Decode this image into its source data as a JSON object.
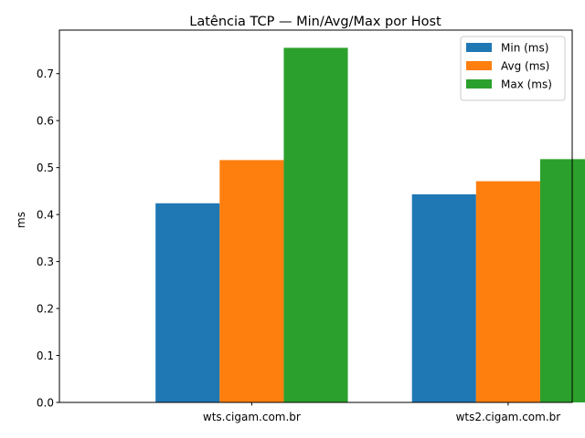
{
  "chart_data": {
    "type": "bar",
    "title": "Latência TCP — Min/Avg/Max por Host",
    "xlabel": "",
    "ylabel": "ms",
    "categories": [
      "wts.cigam.com.br",
      "wts2.cigam.com.br"
    ],
    "series": [
      {
        "name": "Min (ms)",
        "values": [
          0.424,
          0.443
        ],
        "color": "#1f77b4"
      },
      {
        "name": "Avg (ms)",
        "values": [
          0.516,
          0.471
        ],
        "color": "#ff7f0e"
      },
      {
        "name": "Max (ms)",
        "values": [
          0.755,
          0.518
        ],
        "color": "#2ca02c"
      }
    ],
    "ylim": [
      0,
      0.7927
    ],
    "yticks": [
      "0.0",
      "0.1",
      "0.2",
      "0.3",
      "0.4",
      "0.5",
      "0.6",
      "0.7"
    ],
    "grid": false,
    "legend_position": "top-right"
  }
}
